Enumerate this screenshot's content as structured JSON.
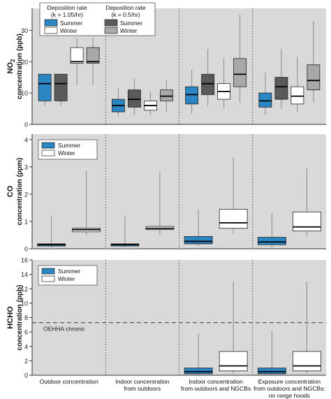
{
  "colors": {
    "panel_bg": "#d9d9d9",
    "summer": "#2b86c4",
    "winter": "#ffffff",
    "summer_low": "#5a5a5a",
    "winter_low": "#a8a8a8",
    "whisker": "#888888",
    "box_edge": "#222222"
  },
  "chart_data": [
    {
      "type": "box",
      "ylabel_line1": "NO",
      "ylabel_sub": "2",
      "ylabel_line2": "concentration (ppb)",
      "ylim": [
        0,
        37
      ],
      "yticks": [
        0,
        10,
        20,
        30
      ],
      "legend": {
        "group1_title": "Deposition rate",
        "group1_subtitle": "(k = 1.05/hr)",
        "group2_title": "Deposition rate",
        "group2_subtitle": "(k = 0.5/hr)",
        "entries": [
          "Summer",
          "Winter",
          "Summer",
          "Winter"
        ]
      },
      "groups": [
        [
          {
            "series": "summer",
            "min": 6,
            "q1": 7.5,
            "median": 13,
            "q3": 16,
            "max": 16
          },
          {
            "series": "summer_low",
            "min": 6,
            "q1": 7.5,
            "median": 13,
            "q3": 16,
            "max": 16
          },
          {
            "series": "winter",
            "min": 12.5,
            "q1": 19.5,
            "median": 20,
            "q3": 24.5,
            "max": 27.5
          },
          {
            "series": "winter_low",
            "min": 12.5,
            "q1": 19.5,
            "median": 20,
            "q3": 24.5,
            "max": 27.5
          }
        ],
        [
          {
            "series": "summer",
            "min": 2.5,
            "q1": 4,
            "median": 6,
            "q3": 8,
            "max": 11.5
          },
          {
            "series": "summer_low",
            "min": 3,
            "q1": 5.5,
            "median": 8,
            "q3": 11,
            "max": 14.5
          },
          {
            "series": "winter",
            "min": 3,
            "q1": 4.5,
            "median": 6,
            "q3": 7.5,
            "max": 10.5
          },
          {
            "series": "winter_low",
            "min": 4,
            "q1": 7.5,
            "median": 9,
            "q3": 11,
            "max": 14
          }
        ],
        [
          {
            "series": "summer",
            "min": 3.5,
            "q1": 6.5,
            "median": 9.5,
            "q3": 12,
            "max": 17.5
          },
          {
            "series": "summer_low",
            "min": 6,
            "q1": 9.5,
            "median": 13,
            "q3": 16,
            "max": 24
          },
          {
            "series": "winter",
            "min": 5,
            "q1": 8,
            "median": 10.5,
            "q3": 13,
            "max": 21
          },
          {
            "series": "winter_low",
            "min": 7,
            "q1": 12,
            "median": 16,
            "q3": 21,
            "max": 35
          }
        ],
        [
          {
            "series": "summer",
            "min": 3,
            "q1": 5.5,
            "median": 7.5,
            "q3": 10,
            "max": 16.5
          },
          {
            "series": "summer_low",
            "min": 5,
            "q1": 8,
            "median": 12,
            "q3": 15,
            "max": 24
          },
          {
            "series": "winter",
            "min": 4,
            "q1": 6.5,
            "median": 9,
            "q3": 12,
            "max": 21.5
          },
          {
            "series": "winter_low",
            "min": 7,
            "q1": 11,
            "median": 14,
            "q3": 19,
            "max": 33
          }
        ]
      ]
    },
    {
      "type": "box",
      "ylabel_line1": "CO",
      "ylabel_line2": "concentration (ppm)",
      "ylim": [
        0,
        4.2
      ],
      "yticks": [
        0,
        1,
        2,
        3,
        4
      ],
      "legend": {
        "entries": [
          "Summer",
          "Winter"
        ]
      },
      "groups": [
        [
          {
            "series": "summer",
            "min": 0.05,
            "q1": 0.1,
            "median": 0.15,
            "q3": 0.18,
            "max": 1.2
          },
          {
            "series": "winter",
            "min": 0.5,
            "q1": 0.62,
            "median": 0.7,
            "q3": 0.75,
            "max": 2.85
          }
        ],
        [
          {
            "series": "summer",
            "min": 0.05,
            "q1": 0.1,
            "median": 0.15,
            "q3": 0.18,
            "max": 1.2
          },
          {
            "series": "winter",
            "min": 0.5,
            "q1": 0.7,
            "median": 0.75,
            "q3": 0.82,
            "max": 2.8
          }
        ],
        [
          {
            "series": "summer",
            "min": 0.1,
            "q1": 0.18,
            "median": 0.27,
            "q3": 0.45,
            "max": 1.42
          },
          {
            "series": "winter",
            "min": 0.55,
            "q1": 0.75,
            "median": 0.95,
            "q3": 1.45,
            "max": 3.35
          }
        ],
        [
          {
            "series": "summer",
            "min": 0.05,
            "q1": 0.15,
            "median": 0.25,
            "q3": 0.42,
            "max": 1.3
          },
          {
            "series": "winter",
            "min": 0.45,
            "q1": 0.65,
            "median": 0.8,
            "q3": 1.35,
            "max": 2.95
          }
        ]
      ]
    },
    {
      "type": "box",
      "ylabel_line1": "HCHO",
      "ylabel_line2": "concentration (ppb)",
      "ylim": [
        0,
        16
      ],
      "yticks": [
        0,
        2,
        4,
        6,
        8,
        10,
        12,
        14,
        16
      ],
      "legend": {
        "entries": [
          "Summer",
          "Winter"
        ]
      },
      "reference_line": {
        "label": "OEHHA chronic",
        "value": 7.3
      },
      "groups": [
        [],
        [],
        [
          {
            "series": "summer",
            "min": 0.05,
            "q1": 0.2,
            "median": 0.5,
            "q3": 1,
            "max": 5.8
          },
          {
            "series": "winter",
            "min": 0.2,
            "q1": 0.6,
            "median": 1.3,
            "q3": 3.3,
            "max": 13
          }
        ],
        [
          {
            "series": "summer",
            "min": 0.05,
            "q1": 0.2,
            "median": 0.5,
            "q3": 1,
            "max": 6.2
          },
          {
            "series": "winter",
            "min": 0.2,
            "q1": 0.6,
            "median": 1.3,
            "q3": 3.3,
            "max": 13
          }
        ]
      ]
    }
  ],
  "categories": [
    [
      "Outdoor concentration"
    ],
    [
      "Indoor concentration",
      "from outdoors"
    ],
    [
      "Indoor concentration",
      "from outdoors and NGCBs"
    ],
    [
      "Exposure concentration",
      "from outdoors and NGCBs:",
      "no range hoods"
    ]
  ]
}
